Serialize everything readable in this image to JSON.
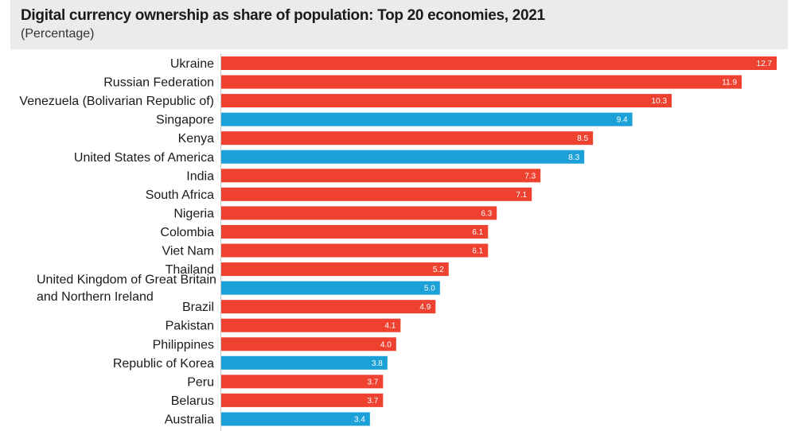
{
  "header": {
    "title": "Digital currency ownership as share of population: Top 20 economies, 2021",
    "subtitle": "(Percentage)"
  },
  "colors": {
    "default": "#ee4130",
    "highlight": "#1ba0d8",
    "header_bg": "#ebebeb",
    "axis": "#c8c8c8"
  },
  "chart_data": {
    "type": "bar",
    "orientation": "horizontal",
    "title": "Digital currency ownership as share of population: Top 20 economies, 2021",
    "subtitle": "(Percentage)",
    "xlabel": "",
    "ylabel": "",
    "xlim": [
      0,
      12.7
    ],
    "grid": false,
    "legend": "none",
    "categories": [
      "Ukraine",
      "Russian Federation",
      "Venezuela (Bolivarian Republic of)",
      "Singapore",
      "Kenya",
      "United States of America",
      "India",
      "South Africa",
      "Nigeria",
      "Colombia",
      "Viet Nam",
      "Thailand",
      "United Kingdom of Great Britain and Northern Ireland",
      "Brazil",
      "Pakistan",
      "Philippines",
      "Republic of Korea",
      "Peru",
      "Belarus",
      "Australia"
    ],
    "category_lines": [
      [
        "Ukraine"
      ],
      [
        "Russian Federation"
      ],
      [
        "Venezuela (Bolivarian Republic of)"
      ],
      [
        "Singapore"
      ],
      [
        "Kenya"
      ],
      [
        "United States of America"
      ],
      [
        "India"
      ],
      [
        "South Africa"
      ],
      [
        "Nigeria"
      ],
      [
        "Colombia"
      ],
      [
        "Viet Nam"
      ],
      [
        "Thailand"
      ],
      [
        "United Kingdom of Great Britain",
        "and Northern Ireland"
      ],
      [
        "Brazil"
      ],
      [
        "Pakistan"
      ],
      [
        "Philippines"
      ],
      [
        "Republic of Korea"
      ],
      [
        "Peru"
      ],
      [
        "Belarus"
      ],
      [
        "Australia"
      ]
    ],
    "values": [
      12.7,
      11.9,
      10.3,
      9.4,
      8.5,
      8.3,
      7.3,
      7.1,
      6.3,
      6.1,
      6.1,
      5.2,
      5.0,
      4.9,
      4.1,
      4.0,
      3.8,
      3.7,
      3.7,
      3.4
    ],
    "value_labels": [
      "12.7",
      "11.9",
      "10.3",
      "9.4",
      "8.5",
      "8.3",
      "7.3",
      "7.1",
      "6.3",
      "6.1",
      "6.1",
      "5.2",
      "5.0",
      "4.9",
      "4.1",
      "4.0",
      "3.8",
      "3.7",
      "3.7",
      "3.4"
    ],
    "highlighted": [
      false,
      false,
      false,
      true,
      false,
      true,
      false,
      false,
      false,
      false,
      false,
      false,
      true,
      false,
      false,
      false,
      true,
      false,
      false,
      true
    ]
  }
}
